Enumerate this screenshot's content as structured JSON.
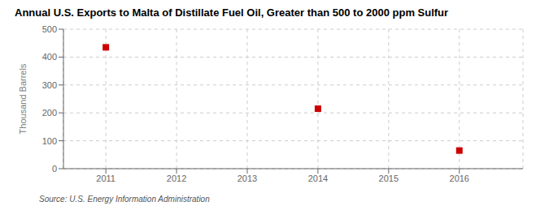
{
  "chart_data": {
    "type": "scatter",
    "title": "Annual U.S. Exports to Malta of Distillate Fuel Oil, Greater than 500 to 2000 ppm Sulfur",
    "ylabel": "Thousand Barrels",
    "source": "Source: U.S. Energy Information Administration",
    "x": [
      2011,
      2014,
      2016
    ],
    "values": [
      435,
      215,
      65
    ],
    "color": "#cc0000",
    "marker": "square",
    "xlim": [
      2010.4,
      2016.9
    ],
    "ylim": [
      0,
      500
    ],
    "xticks": [
      2011,
      2012,
      2013,
      2014,
      2015,
      2016
    ],
    "yticks": [
      0,
      100,
      200,
      300,
      400,
      500
    ],
    "grid": true
  }
}
